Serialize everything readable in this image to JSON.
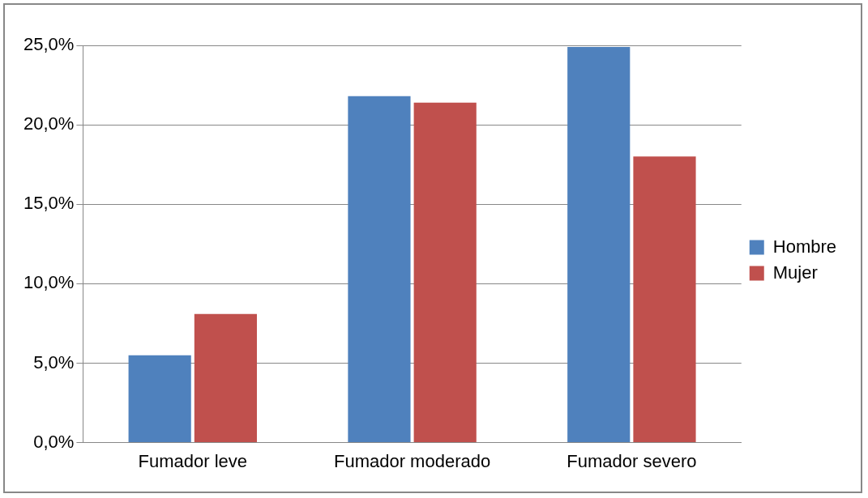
{
  "chart_data": {
    "type": "bar",
    "categories": [
      "Fumador leve",
      "Fumador moderado",
      "Fumador severo"
    ],
    "series": [
      {
        "name": "Hombre",
        "color": "#4f81bd",
        "values": [
          5.5,
          21.8,
          24.9
        ]
      },
      {
        "name": "Mujer",
        "color": "#c0504d",
        "values": [
          8.1,
          21.4,
          18.0
        ]
      }
    ],
    "ylim": [
      0,
      25
    ],
    "yticks": [
      {
        "value": 0,
        "label": "0,0%"
      },
      {
        "value": 5,
        "label": "5,0%"
      },
      {
        "value": 10,
        "label": "10,0%"
      },
      {
        "value": 15,
        "label": "15,0%"
      },
      {
        "value": 20,
        "label": "20,0%"
      },
      {
        "value": 25,
        "label": "25,0%"
      }
    ],
    "grid": "y",
    "legend": "right"
  }
}
